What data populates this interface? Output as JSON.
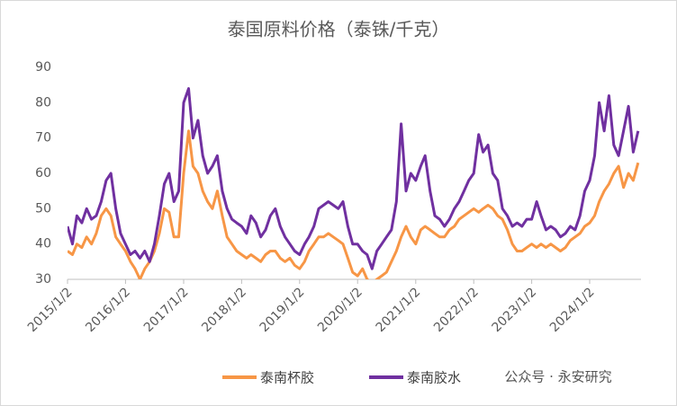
{
  "chart_data": {
    "type": "line",
    "title": "泰国原料价格（泰铢/千克）",
    "watermark": "公众号 · 永安研究",
    "x": [
      "2015/1/2",
      "2015/2/2",
      "2015/3/2",
      "2015/4/2",
      "2015/5/2",
      "2015/6/2",
      "2015/7/2",
      "2015/8/2",
      "2015/9/2",
      "2015/10/2",
      "2015/11/2",
      "2015/12/2",
      "2016/1/2",
      "2016/2/2",
      "2016/3/2",
      "2016/4/2",
      "2016/5/2",
      "2016/6/2",
      "2016/7/2",
      "2016/8/2",
      "2016/9/2",
      "2016/10/2",
      "2016/11/2",
      "2016/12/2",
      "2017/1/2",
      "2017/2/2",
      "2017/3/2",
      "2017/4/2",
      "2017/5/2",
      "2017/6/2",
      "2017/7/2",
      "2017/8/2",
      "2017/9/2",
      "2017/10/2",
      "2017/11/2",
      "2017/12/2",
      "2018/1/2",
      "2018/2/2",
      "2018/3/2",
      "2018/4/2",
      "2018/5/2",
      "2018/6/2",
      "2018/7/2",
      "2018/8/2",
      "2018/9/2",
      "2018/10/2",
      "2018/11/2",
      "2018/12/2",
      "2019/1/2",
      "2019/2/2",
      "2019/3/2",
      "2019/4/2",
      "2019/5/2",
      "2019/6/2",
      "2019/7/2",
      "2019/8/2",
      "2019/9/2",
      "2019/10/2",
      "2019/11/2",
      "2019/12/2",
      "2020/1/2",
      "2020/2/2",
      "2020/3/2",
      "2020/4/2",
      "2020/5/2",
      "2020/6/2",
      "2020/7/2",
      "2020/8/2",
      "2020/9/2",
      "2020/10/2",
      "2020/11/2",
      "2020/12/2",
      "2021/1/2",
      "2021/2/2",
      "2021/3/2",
      "2021/4/2",
      "2021/5/2",
      "2021/6/2",
      "2021/7/2",
      "2021/8/2",
      "2021/9/2",
      "2021/10/2",
      "2021/11/2",
      "2021/12/2",
      "2022/1/2",
      "2022/2/2",
      "2022/3/2",
      "2022/4/2",
      "2022/5/2",
      "2022/6/2",
      "2022/7/2",
      "2022/8/2",
      "2022/9/2",
      "2022/10/2",
      "2022/11/2",
      "2022/12/2",
      "2023/1/2",
      "2023/2/2",
      "2023/3/2",
      "2023/4/2",
      "2023/5/2",
      "2023/6/2",
      "2023/7/2",
      "2023/8/2",
      "2023/9/2",
      "2023/10/2",
      "2023/11/2",
      "2023/12/2",
      "2024/1/2",
      "2024/2/2",
      "2024/3/2",
      "2024/4/2",
      "2024/5/2",
      "2024/6/2",
      "2024/7/2",
      "2024/8/2",
      "2024/9/2",
      "2024/10/2",
      "2024/11/2"
    ],
    "series": [
      {
        "name": "泰南杯胶",
        "color": "#F79646",
        "values": [
          38,
          37,
          40,
          39,
          42,
          40,
          43,
          48,
          50,
          48,
          42,
          40,
          38,
          35,
          33,
          30,
          33,
          35,
          38,
          43,
          50,
          49,
          42,
          42,
          60,
          72,
          62,
          60,
          55,
          52,
          50,
          55,
          48,
          42,
          40,
          38,
          37,
          36,
          37,
          36,
          35,
          37,
          38,
          38,
          36,
          35,
          36,
          34,
          33,
          35,
          38,
          40,
          42,
          42,
          43,
          42,
          41,
          40,
          36,
          32,
          31,
          33,
          30,
          29,
          30,
          31,
          32,
          35,
          38,
          42,
          45,
          42,
          40,
          44,
          45,
          44,
          43,
          42,
          42,
          44,
          45,
          47,
          48,
          49,
          50,
          49,
          50,
          51,
          50,
          48,
          47,
          44,
          40,
          38,
          38,
          39,
          40,
          39,
          40,
          39,
          40,
          39,
          38,
          39,
          41,
          42,
          43,
          45,
          46,
          48,
          52,
          55,
          57,
          60,
          62,
          56,
          60,
          58,
          63
        ]
      },
      {
        "name": "泰南胶水",
        "color": "#7030A0",
        "values": [
          45,
          40,
          48,
          46,
          50,
          47,
          48,
          52,
          58,
          60,
          50,
          43,
          40,
          37,
          38,
          36,
          38,
          35,
          40,
          48,
          57,
          60,
          52,
          55,
          80,
          84,
          70,
          75,
          65,
          60,
          62,
          65,
          55,
          50,
          47,
          46,
          45,
          43,
          48,
          46,
          42,
          44,
          48,
          50,
          45,
          42,
          40,
          38,
          37,
          40,
          42,
          45,
          50,
          51,
          52,
          51,
          50,
          52,
          45,
          40,
          40,
          38,
          37,
          33,
          38,
          40,
          42,
          44,
          52,
          74,
          55,
          60,
          58,
          62,
          65,
          55,
          48,
          47,
          45,
          47,
          50,
          52,
          55,
          58,
          60,
          71,
          66,
          68,
          60,
          58,
          50,
          48,
          45,
          46,
          45,
          47,
          47,
          52,
          48,
          44,
          45,
          44,
          42,
          43,
          45,
          44,
          48,
          55,
          58,
          65,
          80,
          72,
          82,
          68,
          65,
          72,
          79,
          66,
          72
        ]
      }
    ],
    "xlim": [
      "2015/1/2",
      "2024/11/20"
    ],
    "xticks": [
      "2015/1/2",
      "2016/1/2",
      "2017/1/2",
      "2018/1/2",
      "2019/1/2",
      "2020/1/2",
      "2021/1/2",
      "2022/1/2",
      "2023/1/2",
      "2024/1/2"
    ],
    "ylim": [
      30,
      90
    ],
    "yticks": [
      30,
      40,
      50,
      60,
      70,
      80,
      90
    ],
    "grid": false
  }
}
